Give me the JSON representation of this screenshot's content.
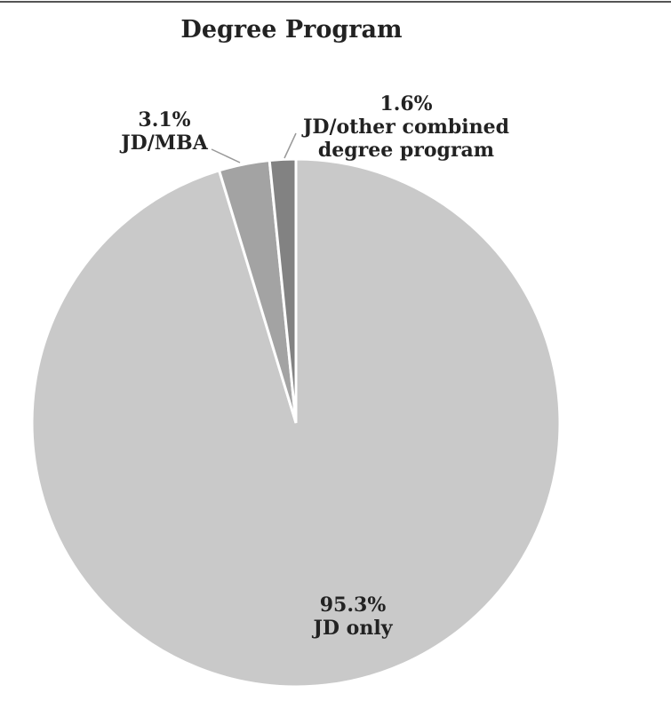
{
  "chart_data": {
    "type": "pie",
    "title": "Degree Program",
    "categories": [
      "JD only",
      "JD/MBA",
      "JD/other combined degree program"
    ],
    "values": [
      95.3,
      3.1,
      1.6
    ],
    "value_labels": [
      "95.3%",
      "3.1%",
      "1.6%"
    ],
    "colors": [
      "#c9c9c9",
      "#a3a3a3",
      "#828282"
    ]
  }
}
